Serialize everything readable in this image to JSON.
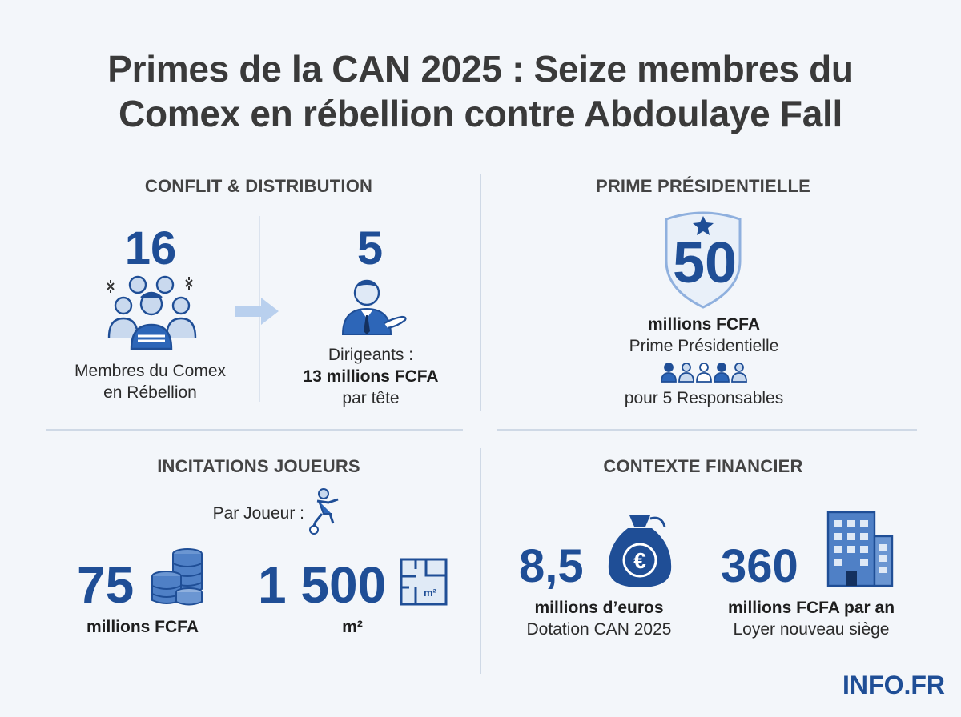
{
  "title_line1": "Primes de la CAN 2025 : Seize membres du",
  "title_line2": "Comex en rébellion contre Abdoulaye Fall",
  "conflict": {
    "heading": "CONFLIT & DISTRIBUTION",
    "rebels_count": "16",
    "rebels_label_line1": "Membres du Comex",
    "rebels_label_line2": "en Rébellion",
    "leaders_count": "5",
    "leaders_label": "Dirigeants :",
    "leaders_amount": "13 millions FCFA",
    "leaders_unit": "par tête"
  },
  "presidential": {
    "heading": "PRIME PRÉSIDENTIELLE",
    "amount": "50",
    "unit": "millions FCFA",
    "label": "Prime Présidentielle",
    "recipients": "pour 5 Responsables"
  },
  "players": {
    "heading": "INCITATIONS JOUEURS",
    "per_player": "Par Joueur :",
    "money_value": "75",
    "money_unit": "millions FCFA",
    "land_value": "1 500",
    "land_unit": "m²",
    "land_icon_label": "m²"
  },
  "financial": {
    "heading": "CONTEXTE FINANCIER",
    "endowment_value": "8,5",
    "endowment_unit": "millions d’euros",
    "endowment_label": "Dotation CAN 2025",
    "rent_value": "360",
    "rent_unit": "millions FCFA par an",
    "rent_label": "Loyer nouveau siège"
  },
  "brand": "INFO.FR",
  "colors": {
    "background": "#f3f6fa",
    "accent": "#1f4e96",
    "light_accent": "#aac4e6"
  }
}
